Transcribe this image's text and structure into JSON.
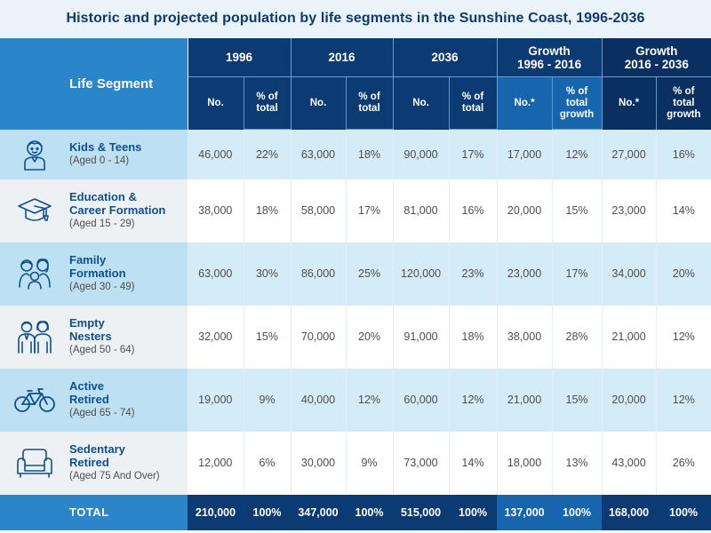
{
  "title": "Historic and projected population by life segments in the Sunshine Coast, 1996-2036",
  "header": {
    "life_segment": "Life Segment",
    "groups": [
      {
        "line1": "1996",
        "line2": ""
      },
      {
        "line1": "2016",
        "line2": ""
      },
      {
        "line1": "2036",
        "line2": ""
      },
      {
        "line1": "Growth",
        "line2": "1996 - 2016"
      },
      {
        "line1": "Growth",
        "line2": "2016 - 2036"
      }
    ],
    "sub": {
      "no": "No.",
      "pct_total_1": "% of",
      "pct_total_2": "total",
      "no_star": "No.*",
      "pct_growth_1": "% of",
      "pct_growth_2": "total",
      "pct_growth_3": "growth"
    }
  },
  "rows": [
    {
      "name1": "Kids & Teens",
      "name2": "",
      "age": "(Aged 0 - 14)",
      "icon": "child-icon",
      "values": [
        "46,000",
        "22%",
        "63,000",
        "18%",
        "90,000",
        "17%",
        "17,000",
        "12%",
        "27,000",
        "16%"
      ]
    },
    {
      "name1": "Education &",
      "name2": "Career Formation",
      "age": "(Aged 15 - 29)",
      "icon": "graduation-cap-icon",
      "values": [
        "38,000",
        "18%",
        "58,000",
        "17%",
        "81,000",
        "16%",
        "20,000",
        "15%",
        "23,000",
        "14%"
      ]
    },
    {
      "name1": "Family",
      "name2": "Formation",
      "age": "(Aged 30 - 49)",
      "icon": "family-icon",
      "values": [
        "63,000",
        "30%",
        "86,000",
        "25%",
        "120,000",
        "23%",
        "23,000",
        "17%",
        "34,000",
        "20%"
      ]
    },
    {
      "name1": "Empty",
      "name2": "Nesters",
      "age": "(Aged 50 - 64)",
      "icon": "couple-icon",
      "values": [
        "32,000",
        "15%",
        "70,000",
        "20%",
        "91,000",
        "18%",
        "38,000",
        "28%",
        "21,000",
        "12%"
      ]
    },
    {
      "name1": "Active",
      "name2": "Retired",
      "age": "(Aged 65 - 74)",
      "icon": "bicycle-icon",
      "values": [
        "19,000",
        "9%",
        "40,000",
        "12%",
        "60,000",
        "12%",
        "21,000",
        "15%",
        "20,000",
        "12%"
      ]
    },
    {
      "name1": "Sedentary",
      "name2": "Retired",
      "age": "(Aged 75 And Over)",
      "icon": "armchair-icon",
      "values": [
        "12,000",
        "6%",
        "30,000",
        "9%",
        "73,000",
        "14%",
        "18,000",
        "13%",
        "43,000",
        "26%"
      ]
    }
  ],
  "total": {
    "label": "TOTAL",
    "values": [
      "210,000",
      "100%",
      "347,000",
      "100%",
      "515,000",
      "100%",
      "137,000",
      "100%",
      "168,000",
      "100%"
    ]
  },
  "colors": {
    "light_blue": "#2a85c9",
    "mid_blue": "#1765ad",
    "navy": "#0c3a72",
    "title_text": "#0e3a6b"
  }
}
